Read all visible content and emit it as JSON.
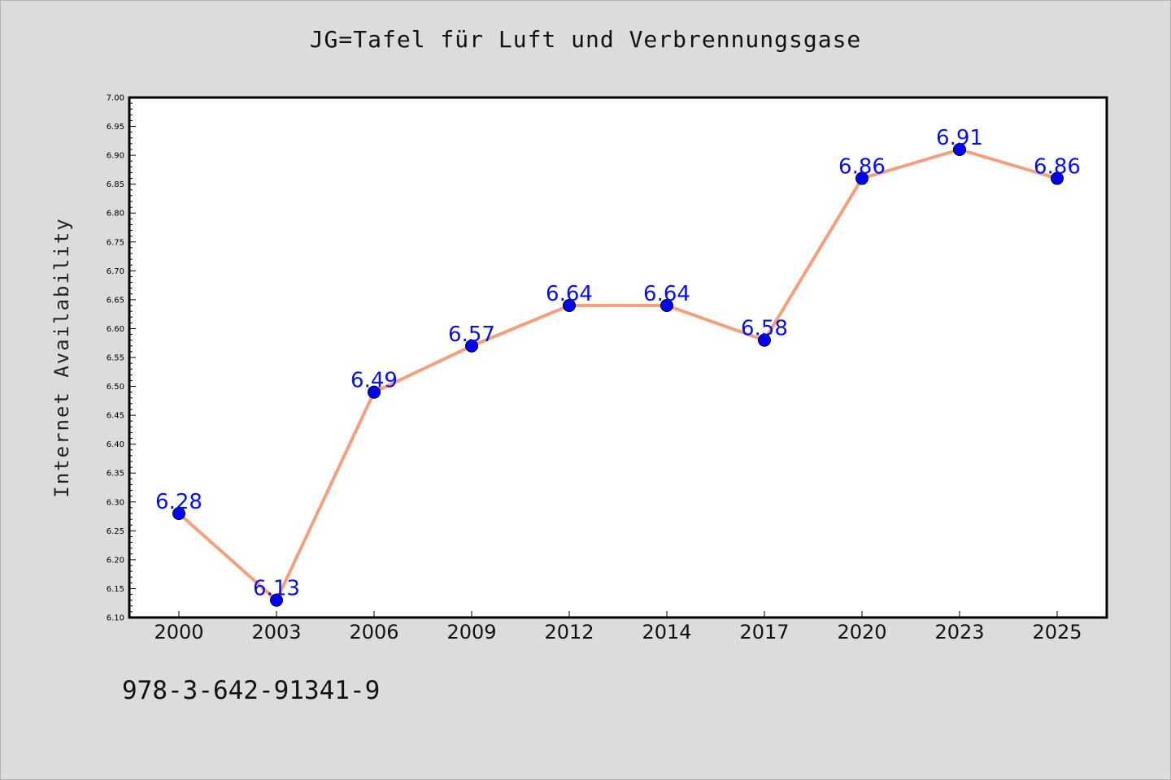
{
  "chart_data": {
    "type": "line",
    "title": "JG=Tafel für Luft und Verbrennungsgase",
    "xlabel": "",
    "ylabel": "Internet Availability",
    "categories": [
      "2000",
      "2003",
      "2006",
      "2009",
      "2012",
      "2014",
      "2017",
      "2020",
      "2023",
      "2025"
    ],
    "series": [
      {
        "values": [
          6.28,
          6.13,
          6.49,
          6.57,
          6.64,
          6.64,
          6.58,
          6.86,
          6.91,
          6.86
        ],
        "labels": [
          "6.28",
          "6.13",
          "6.49",
          "6.57",
          "6.64",
          "6.64",
          "6.58",
          "6.86",
          "6.91",
          "6.86"
        ],
        "line_color": "#f4a07e",
        "marker_color": "#0000ff"
      }
    ],
    "ylim": [
      6.1,
      7.0
    ],
    "yticks": [
      "6.10",
      "6.15",
      "6.20",
      "6.25",
      "6.30",
      "6.35",
      "6.40",
      "6.45",
      "6.50",
      "6.55",
      "6.60",
      "6.65",
      "6.70",
      "6.75",
      "6.80",
      "6.85",
      "6.90",
      "6.95",
      "7.00"
    ],
    "grid": false,
    "legend": "none"
  },
  "footer": {
    "isbn": "978-3-642-91341-9"
  }
}
